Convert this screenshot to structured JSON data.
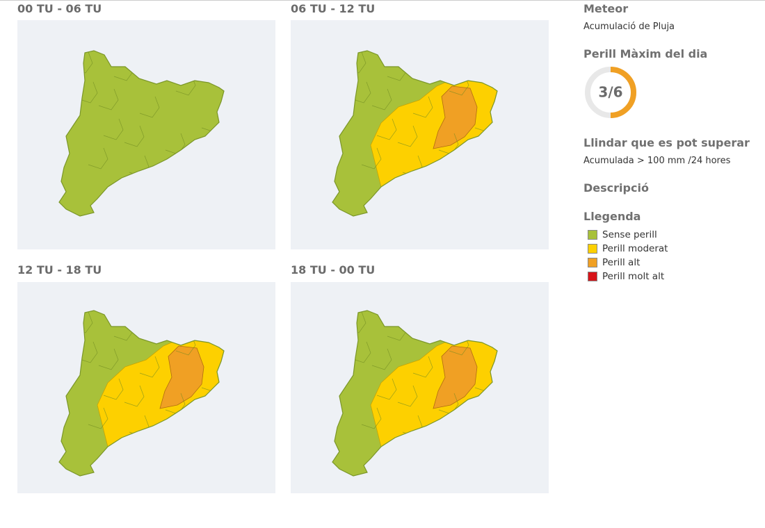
{
  "panels": [
    {
      "title": "00 TU - 06 TU"
    },
    {
      "title": "06 TU - 12 TU"
    },
    {
      "title": "12 TU - 18 TU"
    },
    {
      "title": "18 TU - 00 TU"
    }
  ],
  "sidebar": {
    "meteor_heading": "Meteor",
    "meteor": "Acumulació de Pluja",
    "max_heading": "Perill Màxim del dia",
    "max_level": {
      "label": "3/6",
      "value": 3,
      "max": 6
    },
    "threshold_heading": "Llindar que es pot superar",
    "threshold": "Acumulada > 100 mm /24 hores",
    "description_heading": "Descripció",
    "legend_heading": "Llegenda",
    "legend": [
      {
        "name": "Sense perill",
        "color": "#a8c13a"
      },
      {
        "name": "Perill moderat",
        "color": "#fdd000"
      },
      {
        "name": "Perill alt",
        "color": "#f0a024"
      },
      {
        "name": "Perill molt alt",
        "color": "#d7141a"
      }
    ]
  }
}
